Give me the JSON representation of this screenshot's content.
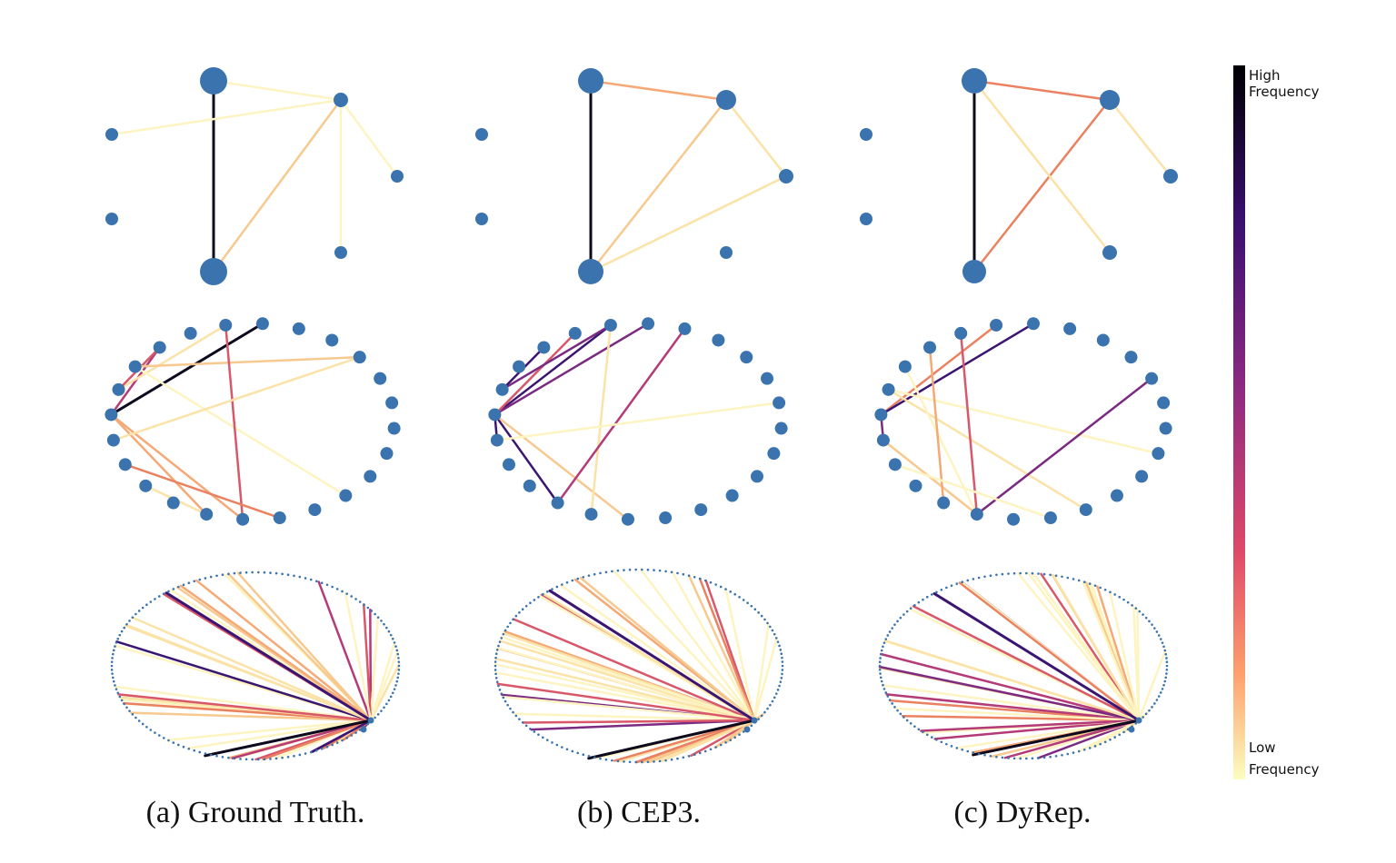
{
  "captions": [
    "(a) Ground Truth.",
    "(b) CEP3.",
    "(c) DyRep."
  ],
  "colorbar": {
    "high_line1": "High",
    "high_line2": "Frequency",
    "low_line1": "Low",
    "low_line2": "Frequency",
    "stops": [
      "#000004",
      "#3b0f70",
      "#8c2981",
      "#de4968",
      "#fe9f6d",
      "#fcfdbf"
    ]
  },
  "node_color": "#3a73ad"
}
